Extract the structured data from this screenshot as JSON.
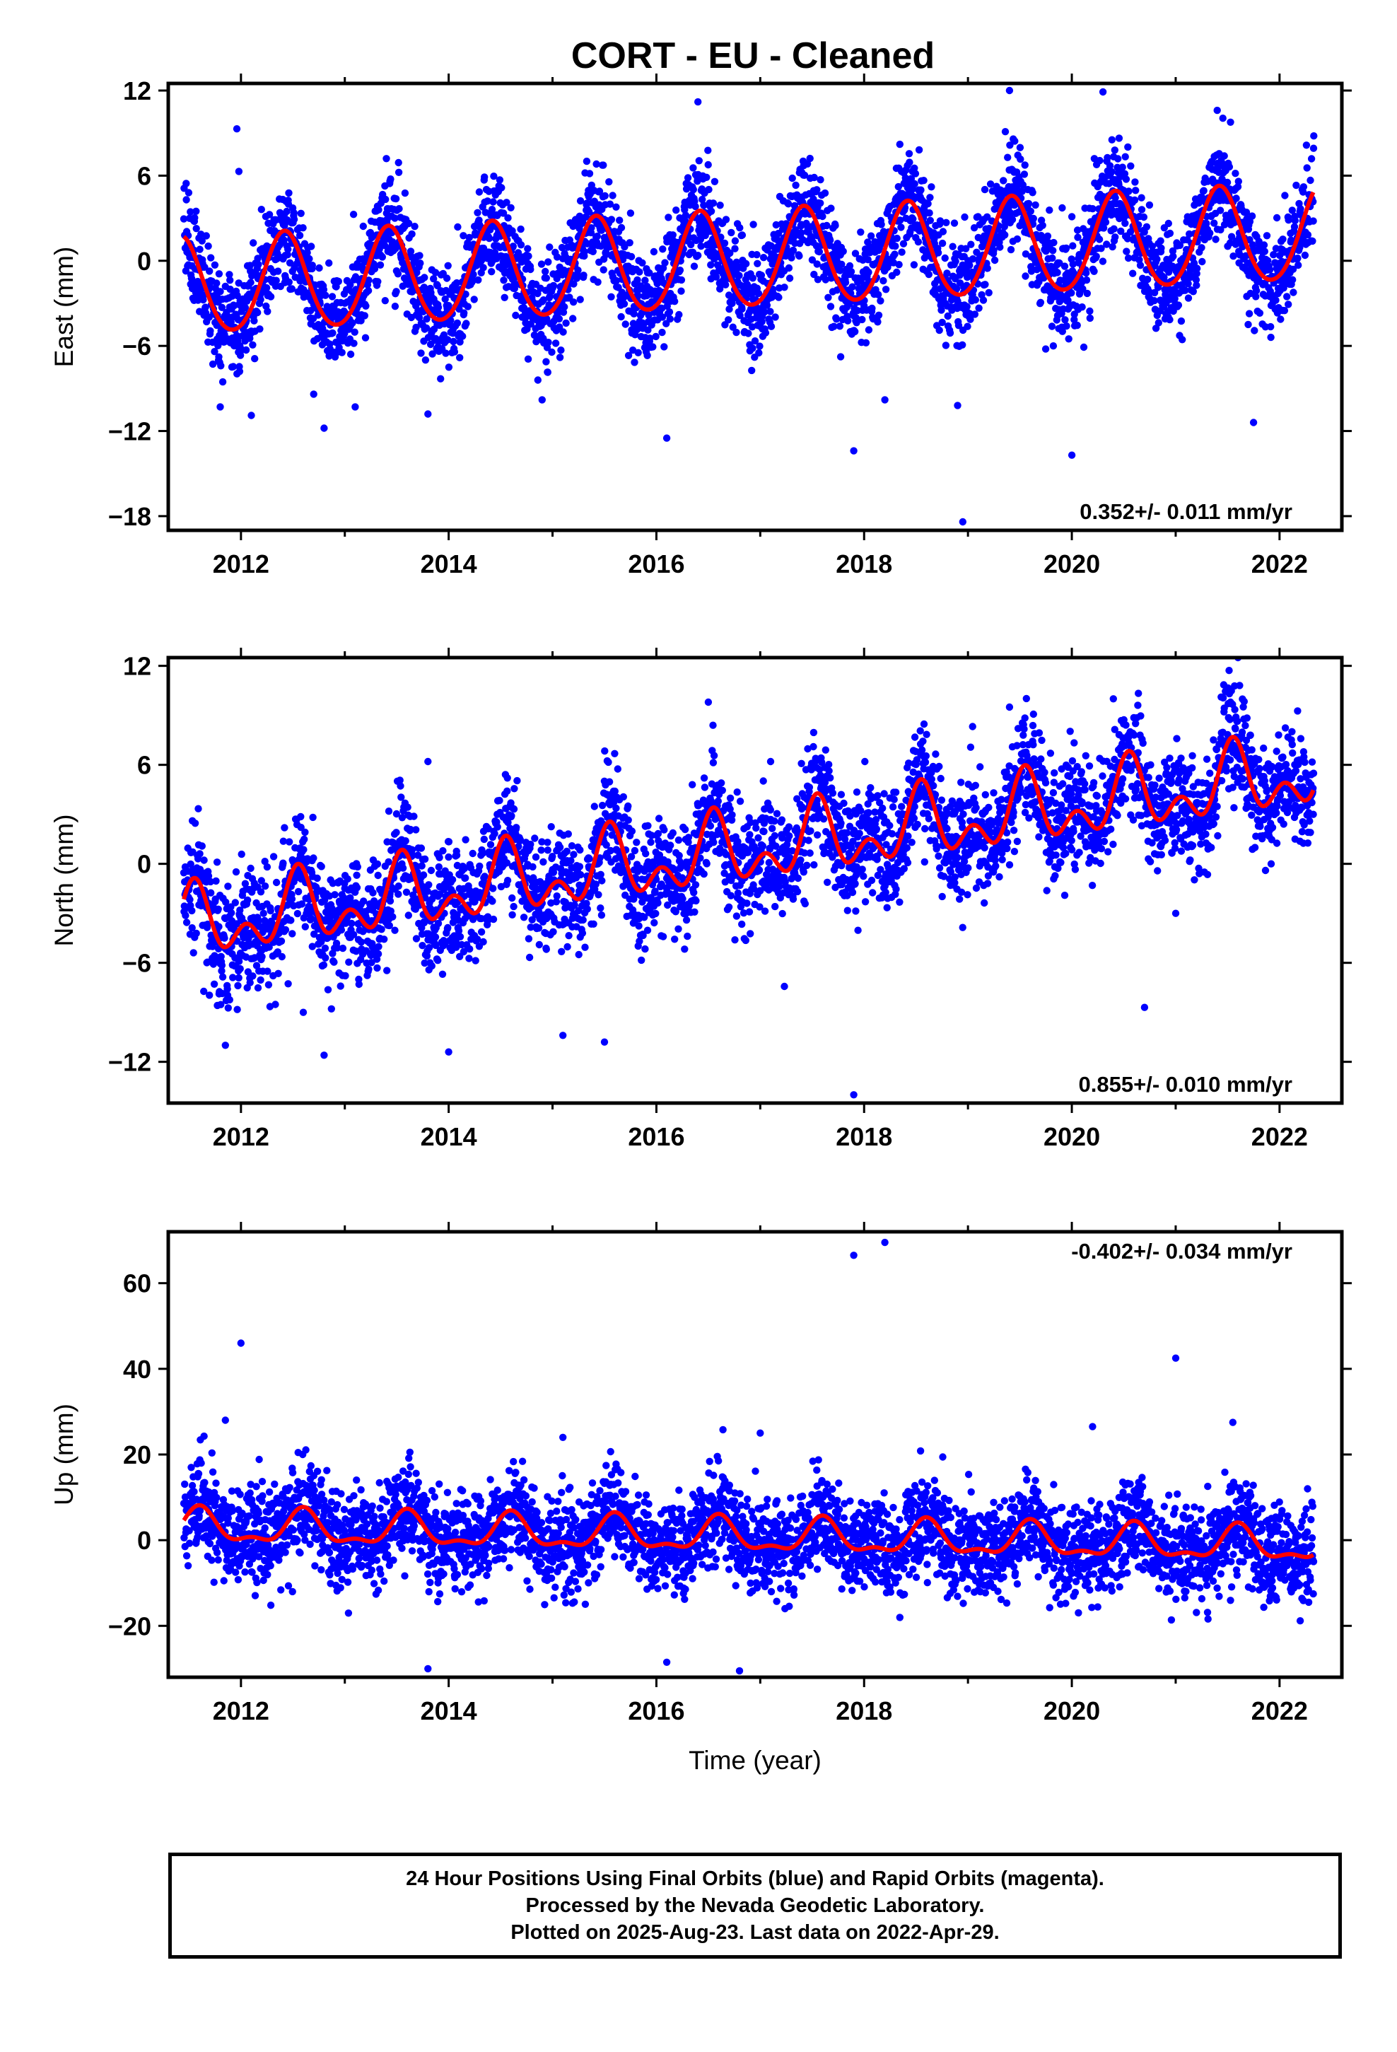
{
  "title": "CORT  - EU - Cleaned",
  "footer": {
    "line1": "24 Hour Positions Using Final Orbits (blue) and Rapid Orbits (magenta).",
    "line2": "Processed by the Nevada Geodetic Laboratory.",
    "line3": "Plotted on 2025-Aug-23. Last data on 2022-Apr-29."
  },
  "colors": {
    "points": "#0000ff",
    "model": "#ff0000",
    "frame": "#000000"
  },
  "chart_data": [
    {
      "type": "scatter",
      "component": "east",
      "xlabel": "",
      "ylabel": "East (mm)",
      "xlim": [
        2011.3,
        2022.6
      ],
      "ylim": [
        -19,
        12.5
      ],
      "xticks": [
        2012,
        2014,
        2016,
        2018,
        2020,
        2022
      ],
      "yticks": [
        -18,
        -12,
        -6,
        0,
        6,
        12
      ],
      "rate_label": "0.352+/- 0.011 mm/yr",
      "rate_position": "bottom-right",
      "data_start": 2011.45,
      "data_end": 2022.33,
      "trend_mm_per_yr": 0.352,
      "model": {
        "offset_at_2011_5": -1.9,
        "annual_amplitude": 3.4,
        "annual_peak_fraction": 0.42,
        "semiannual_amplitude": 0.3
      },
      "scatter_sd": 1.8,
      "series": [
        {
          "values": []
        },
        {
          "values": []
        }
      ],
      "outliers": [
        [
          2011.96,
          9.3
        ],
        [
          2011.98,
          6.3
        ],
        [
          2012.1,
          -10.9
        ],
        [
          2011.8,
          -10.3
        ],
        [
          2012.7,
          -9.4
        ],
        [
          2012.8,
          -11.8
        ],
        [
          2013.1,
          -10.3
        ],
        [
          2013.4,
          7.2
        ],
        [
          2013.8,
          -10.8
        ],
        [
          2014.9,
          -9.8
        ],
        [
          2016.1,
          -12.5
        ],
        [
          2016.4,
          11.2
        ],
        [
          2017.9,
          -13.4
        ],
        [
          2018.2,
          -9.8
        ],
        [
          2018.9,
          -10.2
        ],
        [
          2018.95,
          -18.4
        ],
        [
          2019.4,
          12.0
        ],
        [
          2020.0,
          -13.7
        ],
        [
          2020.3,
          11.9
        ],
        [
          2021.75,
          -11.4
        ],
        [
          2022.33,
          8.8
        ],
        [
          2021.4,
          10.6
        ]
      ]
    },
    {
      "type": "scatter",
      "component": "north",
      "xlabel": "",
      "ylabel": "North (mm)",
      "xlim": [
        2011.3,
        2022.6
      ],
      "ylim": [
        -14.5,
        12.5
      ],
      "xticks": [
        2012,
        2014,
        2016,
        2018,
        2020,
        2022
      ],
      "yticks": [
        -12,
        -6,
        0,
        6,
        12
      ],
      "rate_label": "0.855+/- 0.010 mm/yr",
      "rate_position": "bottom-right",
      "data_start": 2011.45,
      "data_end": 2022.33,
      "trend_mm_per_yr": 0.855,
      "model": {
        "offset_at_2011_5": -3.8,
        "annual_amplitude": 1.6,
        "annual_peak_fraction": 0.55,
        "semiannual_amplitude": 1.3
      },
      "scatter_sd": 1.7,
      "series": [
        {
          "values": []
        },
        {
          "values": []
        }
      ],
      "outliers": [
        [
          2011.85,
          -11.0
        ],
        [
          2012.6,
          -9.0
        ],
        [
          2012.8,
          -11.6
        ],
        [
          2013.8,
          6.2
        ],
        [
          2014.0,
          -11.4
        ],
        [
          2015.1,
          -10.4
        ],
        [
          2015.5,
          -10.8
        ],
        [
          2016.5,
          9.8
        ],
        [
          2017.1,
          6.2
        ],
        [
          2017.9,
          -14.0
        ],
        [
          2020.7,
          -8.7
        ],
        [
          2021.6,
          12.5
        ],
        [
          2021.0,
          -3.0
        ],
        [
          2019.4,
          9.5
        ],
        [
          2020.4,
          10.0
        ]
      ]
    },
    {
      "type": "scatter",
      "component": "up",
      "xlabel": "Time (year)",
      "ylabel": "Up (mm)",
      "xlim": [
        2011.3,
        2022.6
      ],
      "ylim": [
        -32,
        72
      ],
      "xticks": [
        2012,
        2014,
        2016,
        2018,
        2020,
        2022
      ],
      "yticks": [
        -20,
        0,
        20,
        40,
        60
      ],
      "rate_label": "-0.402+/- 0.034 mm/yr",
      "rate_position": "top-right",
      "data_start": 2011.45,
      "data_end": 2022.33,
      "trend_mm_per_yr": -0.402,
      "model": {
        "offset_at_2011_5": 3.0,
        "annual_amplitude": 3.6,
        "annual_peak_fraction": 0.6,
        "semiannual_amplitude": 1.6
      },
      "scatter_sd": 5.5,
      "series": [
        {
          "values": []
        },
        {
          "values": []
        }
      ],
      "outliers": [
        [
          2012.0,
          46.0
        ],
        [
          2011.85,
          28.0
        ],
        [
          2013.8,
          -30.0
        ],
        [
          2016.1,
          -28.5
        ],
        [
          2016.8,
          -30.5
        ],
        [
          2017.0,
          25.0
        ],
        [
          2017.9,
          66.5
        ],
        [
          2018.2,
          69.5
        ],
        [
          2021.0,
          42.5
        ],
        [
          2020.2,
          26.5
        ],
        [
          2021.55,
          27.5
        ],
        [
          2015.1,
          24.0
        ]
      ]
    }
  ]
}
